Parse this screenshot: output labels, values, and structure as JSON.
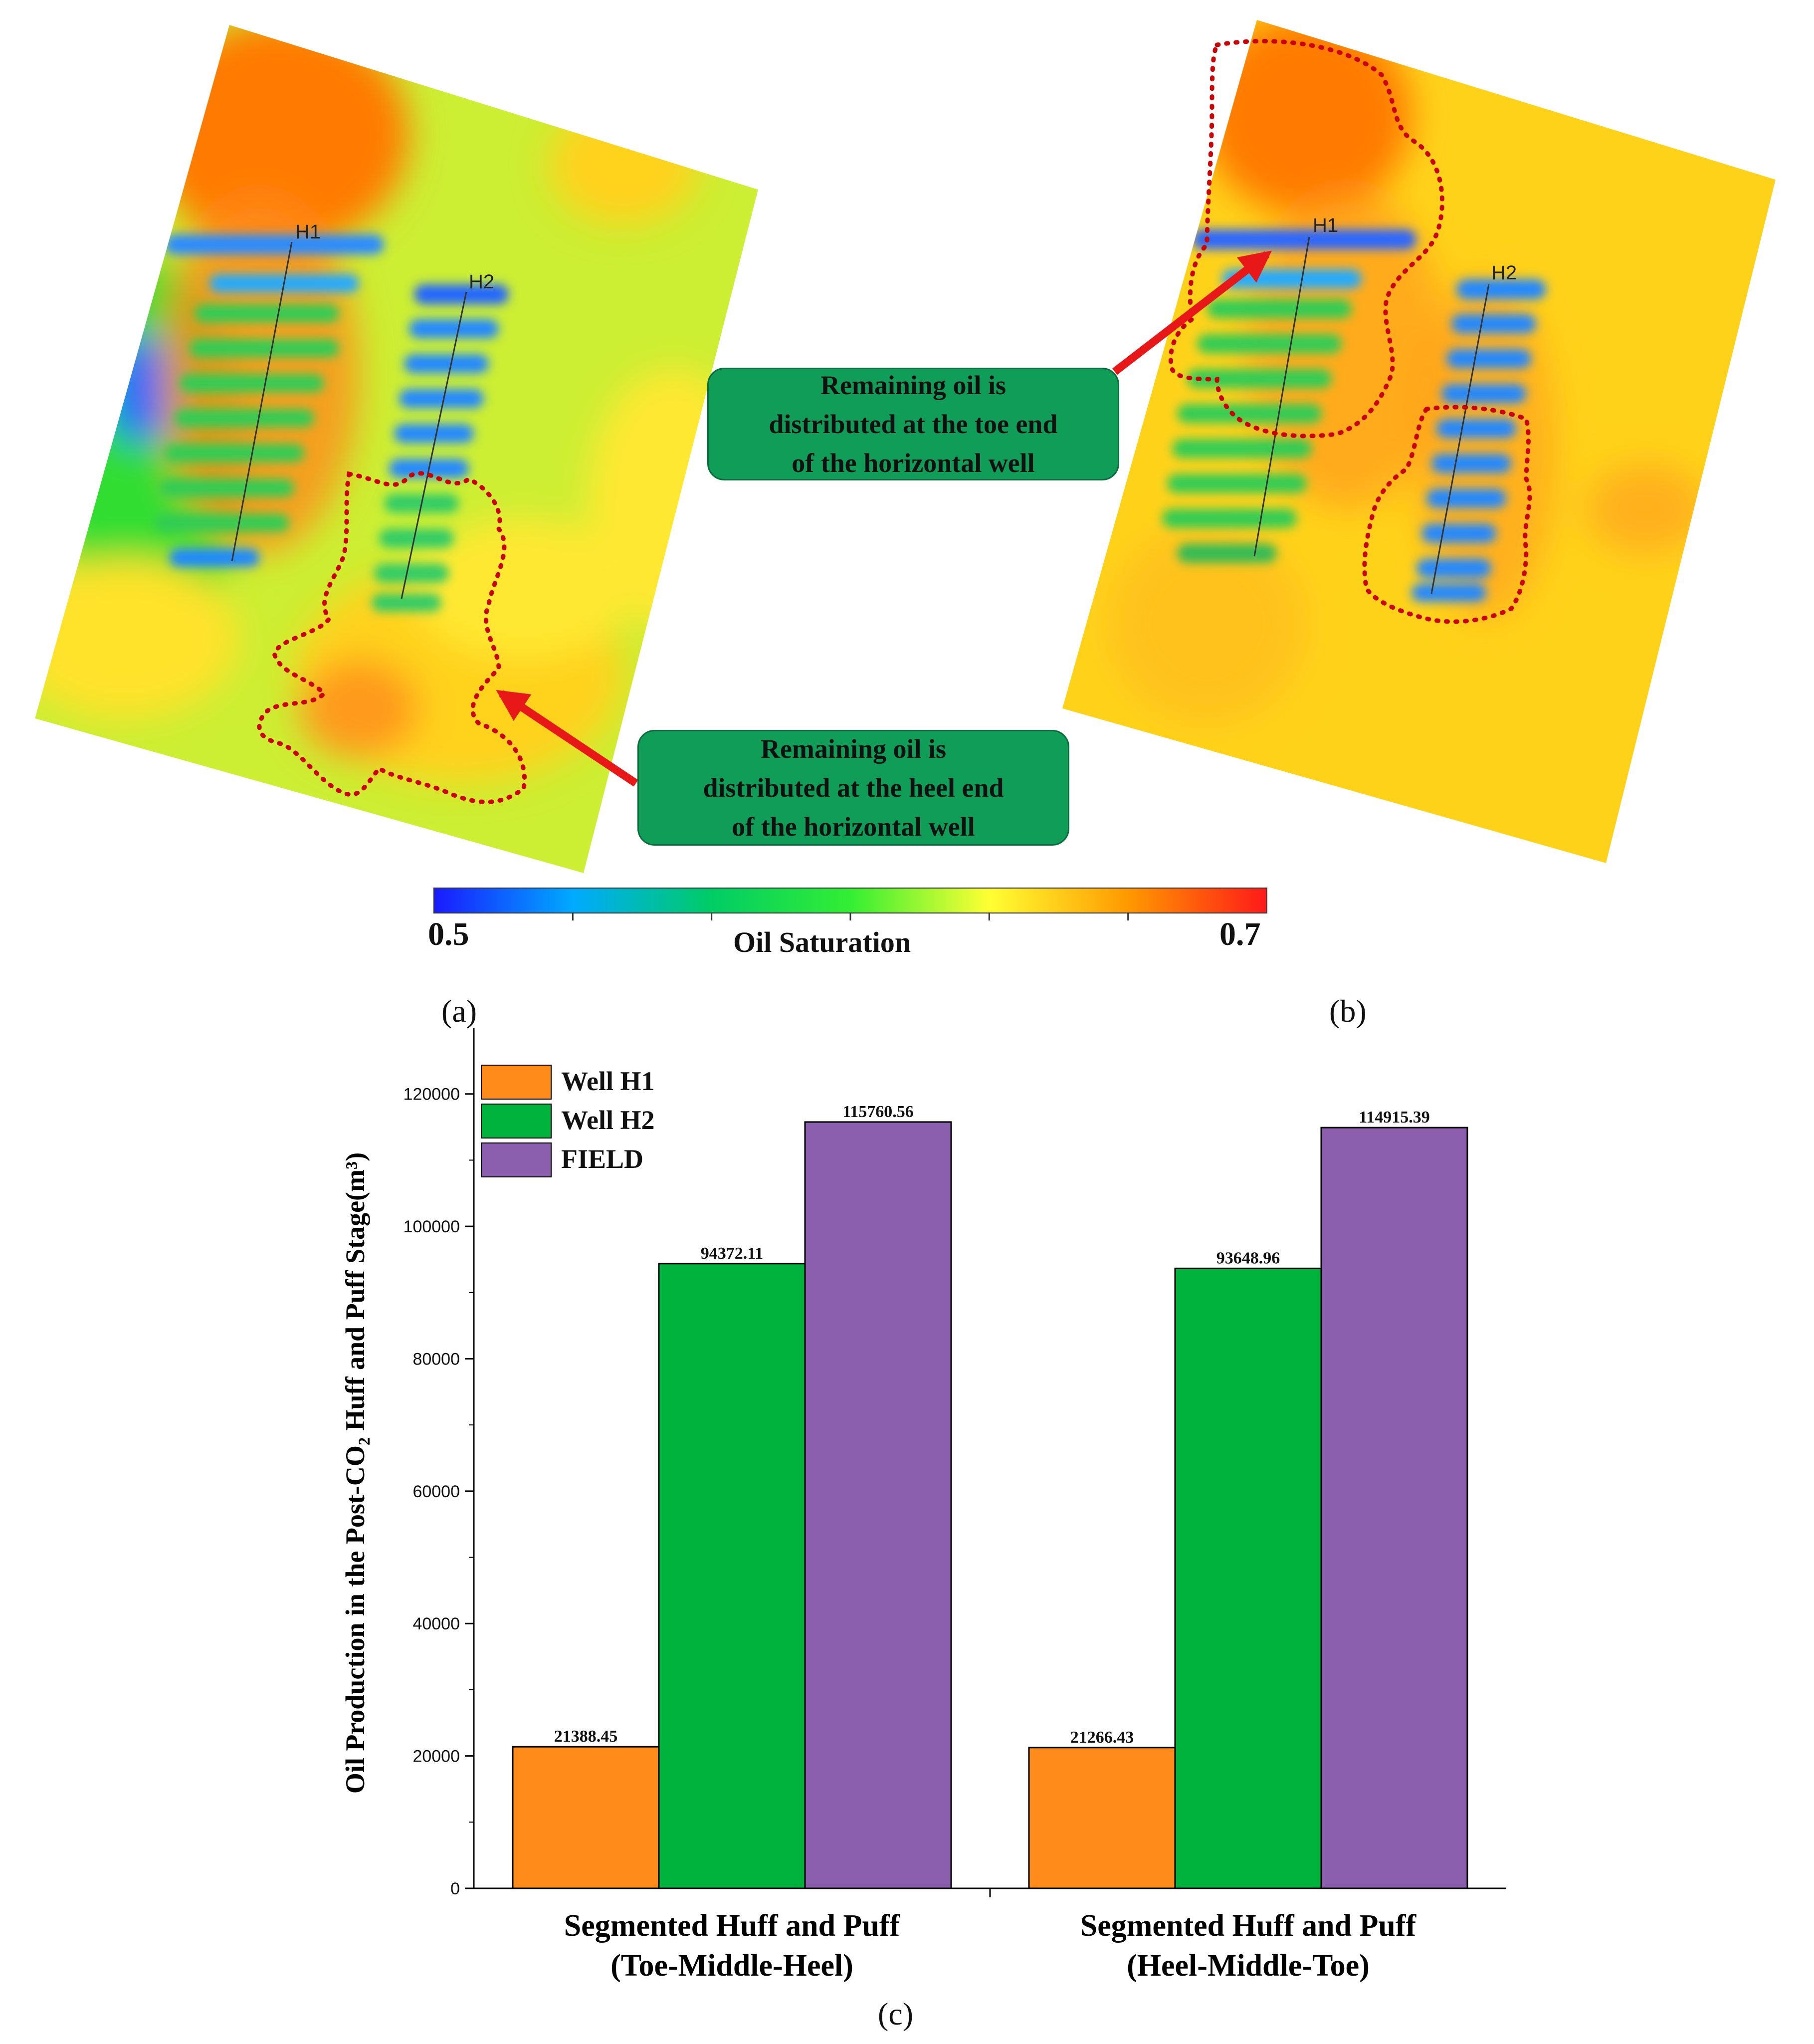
{
  "maps": {
    "panel_a": {
      "label": "(a)",
      "wells": [
        "H1",
        "H2"
      ],
      "callout_lines": [
        "Remaining oil is",
        "distributed  at the heel end",
        "of the horizontal  well"
      ]
    },
    "panel_b": {
      "label": "(b)",
      "wells": [
        "H1",
        "H2"
      ],
      "callout_lines": [
        "Remaining oil is",
        "distributed  at the toe end",
        "of the horizontal  well"
      ]
    },
    "colorbar": {
      "min_label": "0.5",
      "max_label": "0.7",
      "title": "Oil Saturation",
      "colors": [
        "#1a1aff",
        "#00aaff",
        "#00cc66",
        "#33ee33",
        "#ffff33",
        "#ff9900",
        "#ff1a1a"
      ]
    }
  },
  "chart_data": {
    "type": "bar",
    "panel_label": "(c)",
    "ylabel": "Oil Production in the Post-CO₂ Huff and Puff Stage(m³)",
    "ylim": [
      0,
      130000
    ],
    "yticks": [
      0,
      20000,
      40000,
      60000,
      80000,
      100000,
      120000
    ],
    "ytick_labels": [
      "0",
      "20000",
      "40000",
      "60000",
      "80000",
      "100000",
      "120000"
    ],
    "categories": [
      [
        "Segmented Huff and Puff",
        "(Toe-Middle-Heel)"
      ],
      [
        "Segmented Huff and Puff",
        "(Heel-Middle-Toe)"
      ]
    ],
    "legend_position": "top-left",
    "series": [
      {
        "name": "Well H1",
        "color": "#ff8c1a",
        "values": [
          21388.45,
          21266.43
        ],
        "labels": [
          "21388.45",
          "21266.43"
        ]
      },
      {
        "name": "Well H2",
        "color": "#00b33c",
        "values": [
          94372.11,
          93648.96
        ],
        "labels": [
          "94372.11",
          "93648.96"
        ]
      },
      {
        "name": "FIELD",
        "color": "#8c5fae",
        "values": [
          115760.56,
          114915.39
        ],
        "labels": [
          "115760.56",
          "114915.39"
        ]
      }
    ]
  }
}
